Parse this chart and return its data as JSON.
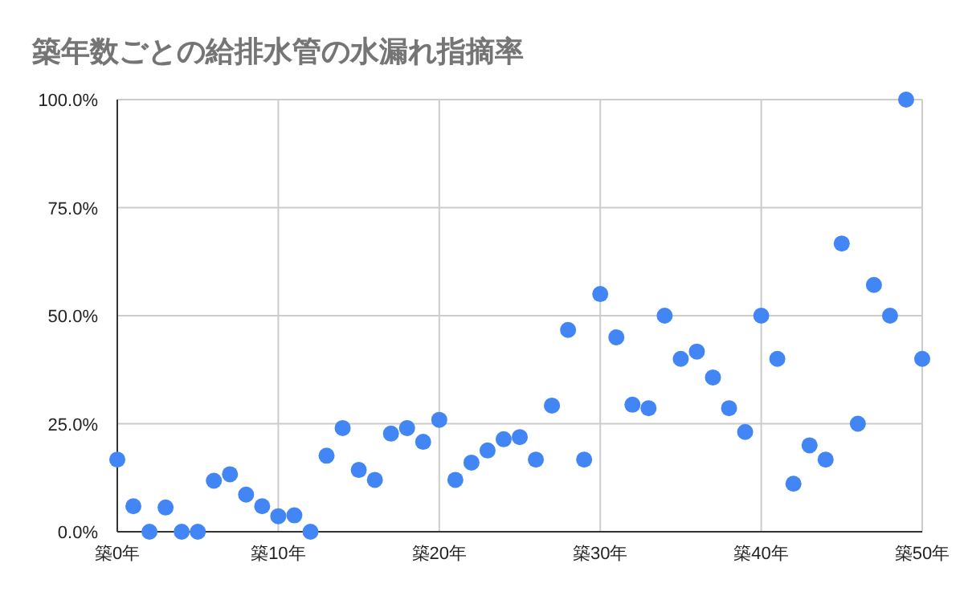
{
  "chart_data": {
    "type": "scatter",
    "title": "築年数ごとの給排水管の水漏れ指摘率",
    "categories": [
      "築0年",
      null,
      null,
      null,
      null,
      null,
      null,
      null,
      null,
      null,
      "築10年",
      null,
      null,
      null,
      null,
      null,
      null,
      null,
      null,
      null,
      "築20年",
      null,
      null,
      null,
      null,
      null,
      null,
      null,
      null,
      null,
      "築30年",
      null,
      null,
      null,
      null,
      null,
      null,
      null,
      null,
      null,
      "築40年",
      null,
      null,
      null,
      null,
      null,
      null,
      null,
      null,
      null,
      "築50年"
    ],
    "values": [
      16.7,
      5.9,
      0,
      5.6,
      0,
      0,
      11.8,
      13.3,
      8.6,
      5.9,
      3.6,
      3.8,
      0,
      17.6,
      24,
      14.3,
      12,
      22.7,
      24,
      20.8,
      25.9,
      12,
      16,
      18.8,
      21.4,
      21.9,
      16.7,
      29.2,
      46.7,
      16.7,
      55,
      45,
      29.4,
      28.6,
      50,
      40,
      41.7,
      35.7,
      28.6,
      23.1,
      50,
      40,
      11.1,
      20,
      16.7,
      66.7,
      25,
      57.1,
      50,
      100,
      40
    ],
    "color": "#4285f4",
    "marker": "circle",
    "grid": true,
    "ylim": [
      0,
      100
    ],
    "yticks": [
      {
        "value": 0,
        "label": "0.0%"
      },
      {
        "value": 25,
        "label": "25.0%"
      },
      {
        "value": 50,
        "label": "50.0%"
      },
      {
        "value": 75,
        "label": "75.0%"
      },
      {
        "value": 100,
        "label": "100.0%"
      }
    ]
  }
}
